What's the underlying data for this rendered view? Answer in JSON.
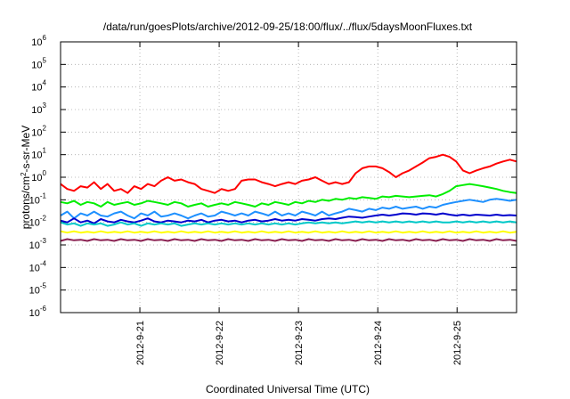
{
  "chart_data": {
    "type": "line",
    "title": "/data/run/goesPlots/archive/2012-09-25/18:00/flux/../flux/5daysMoonFluxes.txt",
    "xlabel": "Coordinated Universal Time (UTC)",
    "ylabel_parts": {
      "pre": "protons/cm",
      "sup": "2",
      "post": "-s-sr-MeV"
    },
    "yscale": "log",
    "ylim": [
      1e-06,
      1000000.0
    ],
    "y_ticks": [
      {
        "base": "10",
        "exp": "-6"
      },
      {
        "base": "10",
        "exp": "-5"
      },
      {
        "base": "10",
        "exp": "-4"
      },
      {
        "base": "10",
        "exp": "-3"
      },
      {
        "base": "10",
        "exp": "-2"
      },
      {
        "base": "10",
        "exp": "-1"
      },
      {
        "base": "10",
        "exp": "0"
      },
      {
        "base": "10",
        "exp": "1"
      },
      {
        "base": "10",
        "exp": "2"
      },
      {
        "base": "10",
        "exp": "3"
      },
      {
        "base": "10",
        "exp": "4"
      },
      {
        "base": "10",
        "exp": "5"
      },
      {
        "base": "10",
        "exp": "6"
      }
    ],
    "xlim": [
      "2012-09-20T00:00",
      "2012-09-25T18:00"
    ],
    "x_ticks": [
      "2012-9-21",
      "2012-9-22",
      "2012-9-23",
      "2012-9-24",
      "2012-9-25"
    ],
    "grid": true,
    "series": [
      {
        "color": "#ff0000",
        "values": [
          0.5,
          0.3,
          0.25,
          0.4,
          0.35,
          0.6,
          0.3,
          0.5,
          0.25,
          0.3,
          0.2,
          0.4,
          0.3,
          0.5,
          0.4,
          0.7,
          1.0,
          0.7,
          0.8,
          0.6,
          0.5,
          0.3,
          0.25,
          0.2,
          0.3,
          0.25,
          0.3,
          0.7,
          0.8,
          0.8,
          0.6,
          0.5,
          0.4,
          0.5,
          0.6,
          0.5,
          0.7,
          0.8,
          1.0,
          0.7,
          0.5,
          0.6,
          0.5,
          0.6,
          1.5,
          2.5,
          3.0,
          3.0,
          2.5,
          1.7,
          1.0,
          1.5,
          2.0,
          3.0,
          4.5,
          7.0,
          8.0,
          10.0,
          8.0,
          5.0,
          2.0,
          1.5,
          2.0,
          2.5,
          3.0,
          4.0,
          5.0,
          6.0,
          5.0
        ]
      },
      {
        "color": "#00ee00",
        "values": [
          0.08,
          0.07,
          0.09,
          0.06,
          0.08,
          0.07,
          0.05,
          0.08,
          0.06,
          0.07,
          0.08,
          0.06,
          0.07,
          0.09,
          0.08,
          0.07,
          0.06,
          0.08,
          0.07,
          0.05,
          0.06,
          0.07,
          0.05,
          0.06,
          0.07,
          0.06,
          0.08,
          0.07,
          0.06,
          0.05,
          0.07,
          0.06,
          0.08,
          0.07,
          0.06,
          0.08,
          0.07,
          0.09,
          0.08,
          0.1,
          0.09,
          0.11,
          0.1,
          0.12,
          0.11,
          0.13,
          0.12,
          0.11,
          0.14,
          0.13,
          0.15,
          0.14,
          0.13,
          0.14,
          0.15,
          0.16,
          0.14,
          0.18,
          0.25,
          0.4,
          0.45,
          0.5,
          0.45,
          0.4,
          0.35,
          0.3,
          0.25,
          0.22,
          0.2
        ]
      },
      {
        "color": "#1e90ff",
        "values": [
          0.02,
          0.03,
          0.015,
          0.025,
          0.02,
          0.03,
          0.02,
          0.018,
          0.025,
          0.03,
          0.02,
          0.015,
          0.025,
          0.02,
          0.03,
          0.018,
          0.02,
          0.025,
          0.02,
          0.015,
          0.02,
          0.025,
          0.018,
          0.02,
          0.03,
          0.025,
          0.02,
          0.025,
          0.02,
          0.03,
          0.025,
          0.02,
          0.03,
          0.02,
          0.025,
          0.02,
          0.03,
          0.025,
          0.02,
          0.03,
          0.02,
          0.025,
          0.03,
          0.04,
          0.035,
          0.03,
          0.04,
          0.035,
          0.045,
          0.04,
          0.05,
          0.04,
          0.045,
          0.05,
          0.04,
          0.05,
          0.045,
          0.06,
          0.07,
          0.08,
          0.09,
          0.1,
          0.09,
          0.08,
          0.1,
          0.11,
          0.1,
          0.09,
          0.1
        ]
      },
      {
        "color": "#0000cd",
        "values": [
          0.012,
          0.01,
          0.015,
          0.01,
          0.012,
          0.009,
          0.014,
          0.011,
          0.01,
          0.013,
          0.011,
          0.01,
          0.012,
          0.015,
          0.011,
          0.01,
          0.012,
          0.011,
          0.01,
          0.012,
          0.011,
          0.013,
          0.01,
          0.012,
          0.013,
          0.011,
          0.012,
          0.01,
          0.012,
          0.013,
          0.011,
          0.012,
          0.014,
          0.012,
          0.013,
          0.012,
          0.014,
          0.013,
          0.012,
          0.014,
          0.015,
          0.014,
          0.016,
          0.018,
          0.017,
          0.016,
          0.018,
          0.02,
          0.022,
          0.02,
          0.022,
          0.025,
          0.024,
          0.022,
          0.025,
          0.024,
          0.022,
          0.025,
          0.022,
          0.02,
          0.022,
          0.02,
          0.022,
          0.021,
          0.02,
          0.022,
          0.02,
          0.021,
          0.02
        ]
      },
      {
        "color": "#00c8c8",
        "values": [
          0.01,
          0.008,
          0.009,
          0.007,
          0.009,
          0.008,
          0.009,
          0.007,
          0.008,
          0.01,
          0.008,
          0.009,
          0.007,
          0.009,
          0.008,
          0.009,
          0.008,
          0.009,
          0.007,
          0.008,
          0.009,
          0.008,
          0.009,
          0.008,
          0.009,
          0.008,
          0.009,
          0.008,
          0.009,
          0.008,
          0.009,
          0.008,
          0.009,
          0.008,
          0.009,
          0.008,
          0.009,
          0.01,
          0.009,
          0.01,
          0.009,
          0.01,
          0.009,
          0.01,
          0.011,
          0.01,
          0.011,
          0.01,
          0.011,
          0.01,
          0.011,
          0.01,
          0.011,
          0.01,
          0.011,
          0.01,
          0.011,
          0.01,
          0.01,
          0.011,
          0.01,
          0.011,
          0.01,
          0.011,
          0.01,
          0.011,
          0.01,
          0.011,
          0.01
        ]
      },
      {
        "color": "#ffff00",
        "values": [
          0.004,
          0.0035,
          0.004,
          0.0035,
          0.0038,
          0.0035,
          0.004,
          0.0035,
          0.0038,
          0.0035,
          0.004,
          0.0035,
          0.0038,
          0.0035,
          0.004,
          0.0035,
          0.0038,
          0.0035,
          0.004,
          0.0035,
          0.0038,
          0.0035,
          0.004,
          0.0035,
          0.0038,
          0.0035,
          0.004,
          0.0035,
          0.0038,
          0.0035,
          0.004,
          0.0035,
          0.0038,
          0.0035,
          0.004,
          0.0035,
          0.0038,
          0.0035,
          0.004,
          0.0035,
          0.0038,
          0.0035,
          0.004,
          0.0035,
          0.0038,
          0.0035,
          0.004,
          0.0035,
          0.0038,
          0.0035,
          0.004,
          0.0035,
          0.0038,
          0.0035,
          0.004,
          0.0035,
          0.0038,
          0.0035,
          0.004,
          0.0035,
          0.0038,
          0.0035,
          0.004,
          0.0035,
          0.0038,
          0.0035,
          0.004,
          0.0035,
          0.0038
        ]
      },
      {
        "color": "#8b2252",
        "values": [
          0.0015,
          0.0018,
          0.0016,
          0.0017,
          0.0015,
          0.0018,
          0.0016,
          0.0017,
          0.0015,
          0.0018,
          0.0016,
          0.0017,
          0.0015,
          0.0018,
          0.0016,
          0.0017,
          0.0015,
          0.0018,
          0.0016,
          0.0017,
          0.0015,
          0.0018,
          0.0016,
          0.0017,
          0.0015,
          0.0018,
          0.0016,
          0.0017,
          0.0015,
          0.0018,
          0.0016,
          0.0017,
          0.0015,
          0.0018,
          0.0016,
          0.0017,
          0.0015,
          0.0018,
          0.0016,
          0.0017,
          0.0015,
          0.0018,
          0.0016,
          0.0017,
          0.0015,
          0.0018,
          0.0016,
          0.0017,
          0.0015,
          0.0018,
          0.0016,
          0.0017,
          0.0015,
          0.0018,
          0.0016,
          0.0017,
          0.0015,
          0.0018,
          0.0016,
          0.0017,
          0.0015,
          0.0018,
          0.0016,
          0.0017,
          0.0015,
          0.0018,
          0.0016,
          0.0017,
          0.0015
        ]
      }
    ]
  }
}
